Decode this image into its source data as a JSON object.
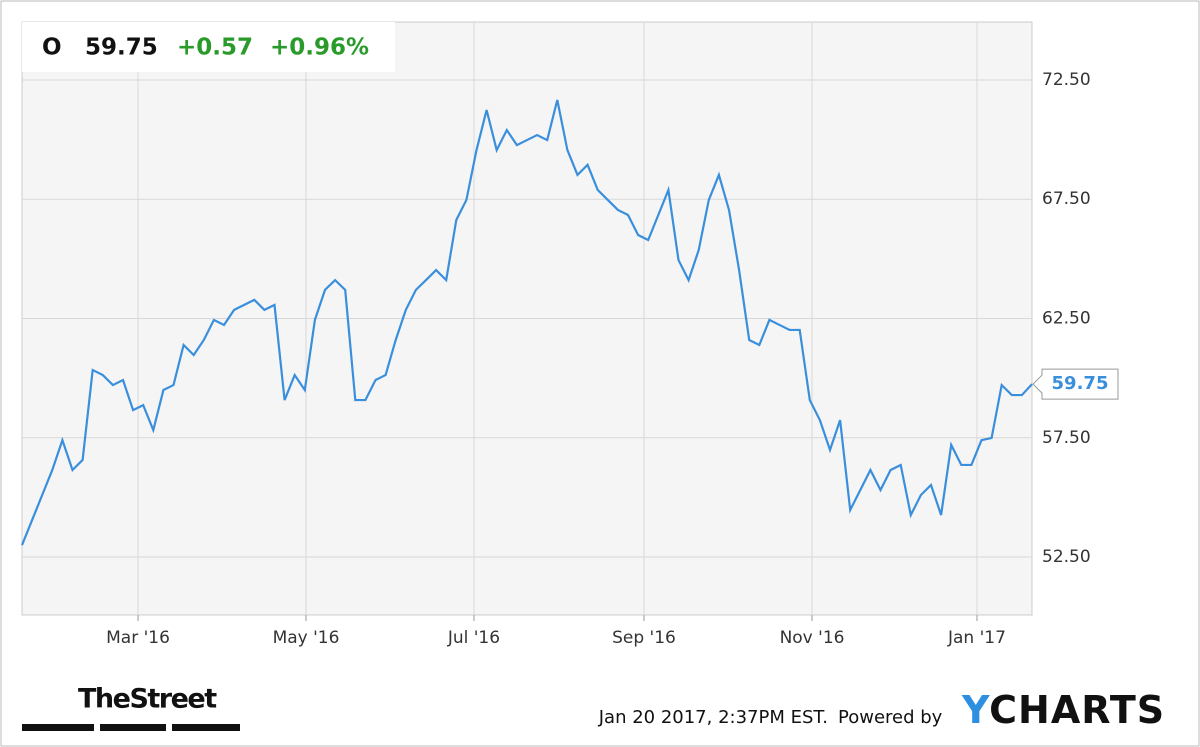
{
  "chart_data": {
    "type": "line",
    "header": {
      "symbol": "O",
      "price": "59.75",
      "change": "+0.57",
      "change_pct": "+0.96%"
    },
    "color": "#3a8fdc",
    "values": [
      53.0,
      54.05,
      55.1,
      56.15,
      57.4,
      56.15,
      56.57,
      60.34,
      60.13,
      59.71,
      59.92,
      58.66,
      58.87,
      57.82,
      59.5,
      59.71,
      61.39,
      60.97,
      61.6,
      62.44,
      62.23,
      62.86,
      63.07,
      63.28,
      62.86,
      63.07,
      59.08,
      60.13,
      59.5,
      62.44,
      63.7,
      64.11,
      63.7,
      59.08,
      59.08,
      59.92,
      60.13,
      61.6,
      62.86,
      63.7,
      64.11,
      64.53,
      64.11,
      66.63,
      67.47,
      69.56,
      71.24,
      69.56,
      70.4,
      69.77,
      69.98,
      70.19,
      69.98,
      71.66,
      69.56,
      68.52,
      68.94,
      67.89,
      67.47,
      67.05,
      66.84,
      66.0,
      65.79,
      66.84,
      67.89,
      64.95,
      64.11,
      65.37,
      67.47,
      68.52,
      67.05,
      64.53,
      61.6,
      61.39,
      62.44,
      62.23,
      62.02,
      62.02,
      59.08,
      58.24,
      56.99,
      58.24,
      54.47,
      55.31,
      56.15,
      55.31,
      56.15,
      56.36,
      54.26,
      55.1,
      55.52,
      54.26,
      57.2,
      56.36,
      56.36,
      57.4,
      57.49,
      59.71,
      59.29,
      59.29,
      59.75
    ],
    "xlim": [
      0,
      100
    ],
    "xticks": [
      {
        "value": 11.49,
        "label": "Mar '16"
      },
      {
        "value": 28.12,
        "label": "May '16"
      },
      {
        "value": 44.75,
        "label": "Jul '16"
      },
      {
        "value": 61.58,
        "label": "Sep '16"
      },
      {
        "value": 78.22,
        "label": "Nov '16"
      },
      {
        "value": 94.55,
        "label": "Jan '17"
      }
    ],
    "ylim": [
      50.07,
      74.93
    ],
    "yticks": [
      {
        "value": 52.5,
        "label": "52.50"
      },
      {
        "value": 57.5,
        "label": "57.50"
      },
      {
        "value": 62.5,
        "label": "62.50"
      },
      {
        "value": 67.5,
        "label": "67.50"
      },
      {
        "value": 72.5,
        "label": "72.50"
      }
    ],
    "grid": true,
    "footer": {
      "brand": "TheStreet",
      "timestamp": "Jan 20 2017, 2:37PM EST.",
      "powered": "Powered by",
      "logo": "YCHARTS"
    }
  }
}
